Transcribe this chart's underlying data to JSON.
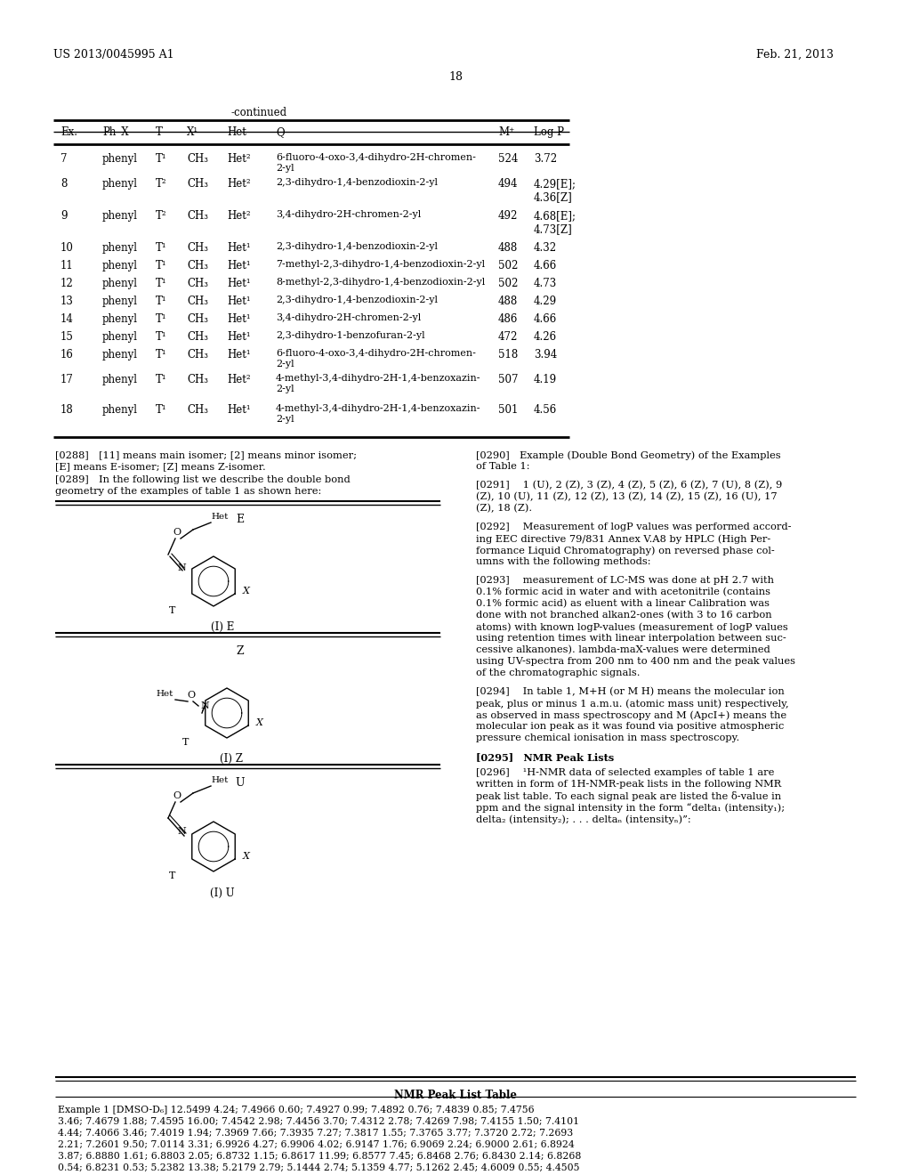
{
  "header_left": "US 2013/0045995 A1",
  "header_right": "Feb. 21, 2013",
  "page_number": "18",
  "continued_label": "-continued",
  "table_columns": [
    "Ex.",
    "Ph–X",
    "T",
    "X¹",
    "Het",
    "Q",
    "M⁺",
    "Log P"
  ],
  "table_rows": [
    [
      "7",
      "phenyl",
      "T¹",
      "CH₃",
      "Het²",
      "6-fluoro-4-oxo-3,4-dihydro-2H-chromen-\n2-yl",
      "524",
      "3.72"
    ],
    [
      "8",
      "phenyl",
      "T²",
      "CH₃",
      "Het²",
      "2,3-dihydro-1,4-benzodioxin-2-yl",
      "494",
      "4.29[E];\n4.36[Z]"
    ],
    [
      "9",
      "phenyl",
      "T²",
      "CH₃",
      "Het²",
      "3,4-dihydro-2H-chromen-2-yl",
      "492",
      "4.68[E];\n4.73[Z]"
    ],
    [
      "10",
      "phenyl",
      "T¹",
      "CH₃",
      "Het¹",
      "2,3-dihydro-1,4-benzodioxin-2-yl",
      "488",
      "4.32"
    ],
    [
      "11",
      "phenyl",
      "T¹",
      "CH₃",
      "Het¹",
      "7-methyl-2,3-dihydro-1,4-benzodioxin-2-yl",
      "502",
      "4.66"
    ],
    [
      "12",
      "phenyl",
      "T¹",
      "CH₃",
      "Het¹",
      "8-methyl-2,3-dihydro-1,4-benzodioxin-2-yl",
      "502",
      "4.73"
    ],
    [
      "13",
      "phenyl",
      "T¹",
      "CH₃",
      "Het¹",
      "2,3-dihydro-1,4-benzodioxin-2-yl",
      "488",
      "4.29"
    ],
    [
      "14",
      "phenyl",
      "T¹",
      "CH₃",
      "Het¹",
      "3,4-dihydro-2H-chromen-2-yl",
      "486",
      "4.66"
    ],
    [
      "15",
      "phenyl",
      "T¹",
      "CH₃",
      "Het¹",
      "2,3-dihydro-1-benzofuran-2-yl",
      "472",
      "4.26"
    ],
    [
      "16",
      "phenyl",
      "T¹",
      "CH₃",
      "Het¹",
      "6-fluoro-4-oxo-3,4-dihydro-2H-chromen-\n2-yl",
      "518",
      "3.94"
    ],
    [
      "17",
      "phenyl",
      "T¹",
      "CH₃",
      "Het²",
      "4-methyl-3,4-dihydro-2H-1,4-benzoxazin-\n2-yl",
      "507",
      "4.19"
    ],
    [
      "18",
      "phenyl",
      "T¹",
      "CH₃",
      "Het¹",
      "4-methyl-3,4-dihydro-2H-1,4-benzoxazin-\n2-yl",
      "501",
      "4.56"
    ]
  ],
  "para_288": "[0288] [11] means main isomer; [2] means minor isomer;\n[E] means E-isomer; [Z] means Z-isomer.",
  "para_289": "[0289] In the following list we describe the double bond\ngeometry of the examples of table 1 as shown here:",
  "label_E": "E",
  "label_Z": "Z",
  "label_U": "U",
  "caption_E": "(I) E",
  "caption_Z": "(I) Z",
  "caption_U": "(I) U",
  "para_290": "[0290] Example (Double Bond Geometry) of the Examples\nof Table 1:",
  "para_291": "[0291]  1 (U), 2 (Z), 3 (Z), 4 (Z), 5 (Z), 6 (Z), 7 (U), 8 (Z), 9\n(Z), 10 (U), 11 (Z), 12 (Z), 13 (Z), 14 (Z), 15 (Z), 16 (U), 17\n(Z), 18 (Z).",
  "para_292": "[0292]  Measurement of logP values was performed accord-\ning EEC directive 79/831 Annex V.A8 by HPLC (High Per-\nformance Liquid Chromatography) on reversed phase col-\numns with the following methods:",
  "para_293": "[0293]  measurement of LC-MS was done at pH 2.7 with\n0.1% formic acid in water and with acetonitrile (contains\n0.1% formic acid) as eluent with a linear Calibration was\ndone with not branched alkan2-ones (with 3 to 16 carbon\natoms) with known logP-values (measurement of logP values\nusing retention times with linear interpolation between suc-\ncessive alkanones). lambda-maX-values were determined\nusing UV-spectra from 200 nm to 400 nm and the peak values\nof the chromatographic signals.",
  "para_294": "[0294]  In table 1, M+H (or M H) means the molecular ion\npeak, plus or minus 1 a.m.u. (atomic mass unit) respectively,\nas observed in mass spectroscopy and M (ApcI+) means the\nmolecular ion peak as it was found via positive atmospheric\npressure chemical ionisation in mass spectroscopy.",
  "para_295": "[0295] NMR Peak Lists",
  "para_296": "[0296]  ¹H-NMR data of selected examples of table 1 are\nwritten in form of 1H-NMR-peak lists in the following NMR\npeak list table. To each signal peak are listed the δ-value in\nppm and the signal intensity in the form “delta₁ (intensity₁);\ndelta₂ (intensity₂); . . . deltaₙ (intensityₙ)”:",
  "nmr_table_header": "NMR Peak List Table",
  "nmr_row1": "Example 1 [DMSO-D₆] 12.5499 4.24; 7.4966 0.60; 7.4927 0.99; 7.4892 0.76; 7.4839 0.85; 7.4756\n3.46; 7.4679 1.88; 7.4595 16.00; 7.4542 2.98; 7.4456 3.70; 7.4312 2.78; 7.4269 7.98; 7.4155 1.50; 7.4101\n4.44; 7.4066 3.46; 7.4019 1.94; 7.3969 7.66; 7.3935 7.27; 7.3817 1.55; 7.3765 3.77; 7.3720 2.72; 7.2693\n2.21; 7.2601 9.50; 7.0114 3.31; 6.9926 4.27; 6.9906 4.02; 6.9147 1.76; 6.9069 2.24; 6.9000 2.61; 6.8924\n3.87; 6.8880 1.61; 6.8803 2.05; 6.8732 1.15; 6.8617 11.99; 6.8577 7.45; 6.8468 2.76; 6.8430 2.14; 6.8268\n0.54; 6.8231 0.53; 5.2382 13.38; 5.2179 2.79; 5.1444 2.74; 5.1359 4.77; 5.1262 2.45; 4.6009 0.55; 4.4505"
}
